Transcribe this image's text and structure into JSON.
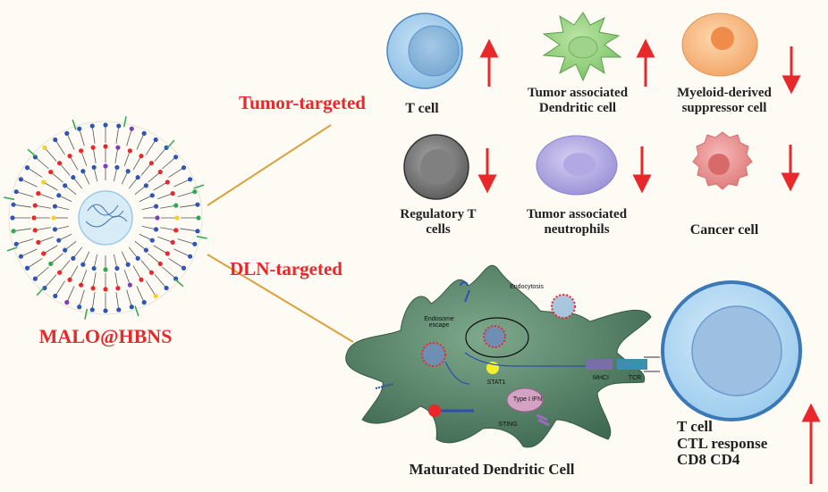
{
  "particle": {
    "name": "MALO@HBNS"
  },
  "routes": {
    "tumor": "Tumor-targeted",
    "dln": "DLN-targeted"
  },
  "tumor_cells": [
    {
      "label": "T cell",
      "trend": "up"
    },
    {
      "label": "Tumor associated Dendritic cell",
      "line1": "Tumor associated",
      "line2": "Dendritic cell",
      "trend": "up"
    },
    {
      "label": "Myeloid-derived suppressor cell",
      "line1": "Myeloid-derived",
      "line2": "suppressor cell",
      "trend": "down"
    },
    {
      "label": "Regulatory T cells",
      "line1": "Regulatory T",
      "line2": "cells",
      "trend": "down"
    },
    {
      "label": "Tumor associated neutrophils",
      "line1": "Tumor associated",
      "line2": "neutrophils",
      "trend": "down"
    },
    {
      "label": "Cancer cell",
      "trend": "down"
    }
  ],
  "dendritic": {
    "title": "Maturated Dendritic Cell",
    "endocytosis": "Endocytosis",
    "escape_line1": "Endosome",
    "escape_line2": "escape",
    "stat": "STAT1",
    "ifn": "Type I IFN",
    "sting": "STING",
    "mhc": "MHCI",
    "tcr": "TCR"
  },
  "effector": {
    "title": "T cell",
    "line1": "CTL response",
    "line2": "CD8 CD4",
    "trend": "up"
  },
  "colors": {
    "accent_red": "#e8282b",
    "cell_green": "#4e7f62",
    "tcell_blue": "#a9d3ef",
    "connector": "#d9a23c"
  }
}
